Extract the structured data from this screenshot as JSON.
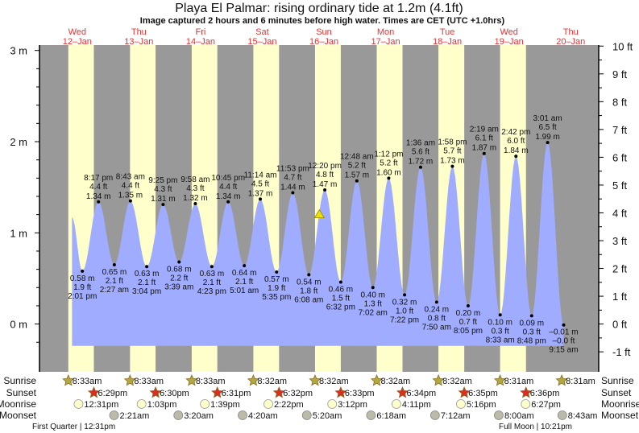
{
  "title": "Playa El Palmar: rising  ordinary tide at 1.2m (4.1ft)",
  "subtitle": "Image captured 2 hours and 6 minutes before high water. Times are CET (UTC +1.0hrs)",
  "colors": {
    "day": "#ffffcc",
    "night": "#999999",
    "tide": "#a0acff",
    "day_label": "#e83030",
    "sunrise_star": "#b0a840",
    "sunset_star": "#d83020",
    "moonrise": "#ffffcc",
    "moonset": "#bbbbaa"
  },
  "days": [
    {
      "weekday": "Wed",
      "date": "12–Jan"
    },
    {
      "weekday": "Thu",
      "date": "13–Jan"
    },
    {
      "weekday": "Fri",
      "date": "14–Jan"
    },
    {
      "weekday": "Sat",
      "date": "15–Jan"
    },
    {
      "weekday": "Sun",
      "date": "16–Jan"
    },
    {
      "weekday": "Mon",
      "date": "17–Jan"
    },
    {
      "weekday": "Tue",
      "date": "18–Jan"
    },
    {
      "weekday": "Wed",
      "date": "19–Jan"
    },
    {
      "weekday": "Thu",
      "date": "20–Jan"
    }
  ],
  "row_labels": {
    "sunrise": "Sunrise",
    "sunset": "Sunset",
    "moonrise": "Moonrise",
    "moonset": "Moonset"
  },
  "sunrise": [
    {
      "day": 0,
      "time": "8:33am"
    },
    {
      "day": 1,
      "time": "8:33am"
    },
    {
      "day": 2,
      "time": "8:33am"
    },
    {
      "day": 3,
      "time": "8:32am"
    },
    {
      "day": 4,
      "time": "8:32am"
    },
    {
      "day": 5,
      "time": "8:32am"
    },
    {
      "day": 6,
      "time": "8:32am"
    },
    {
      "day": 7,
      "time": "8:31am"
    },
    {
      "day": 8,
      "time": "8:31am"
    }
  ],
  "sunset": [
    {
      "day": 0,
      "time": "6:29pm"
    },
    {
      "day": 1,
      "time": "6:30pm"
    },
    {
      "day": 2,
      "time": "6:31pm"
    },
    {
      "day": 3,
      "time": "6:32pm"
    },
    {
      "day": 4,
      "time": "6:33pm"
    },
    {
      "day": 5,
      "time": "6:34pm"
    },
    {
      "day": 6,
      "time": "6:35pm"
    },
    {
      "day": 7,
      "time": "6:36pm"
    }
  ],
  "moonrise": [
    {
      "day": 0,
      "time": "12:31pm"
    },
    {
      "day": 1,
      "time": "1:03pm"
    },
    {
      "day": 2,
      "time": "1:39pm"
    },
    {
      "day": 3,
      "time": "2:22pm"
    },
    {
      "day": 4,
      "time": "3:12pm"
    },
    {
      "day": 5,
      "time": "4:11pm"
    },
    {
      "day": 6,
      "time": "5:16pm"
    },
    {
      "day": 7,
      "time": "6:27pm"
    }
  ],
  "moonset": [
    {
      "day": 1,
      "time": "2:21am"
    },
    {
      "day": 2,
      "time": "3:20am"
    },
    {
      "day": 3,
      "time": "4:20am"
    },
    {
      "day": 4,
      "time": "5:20am"
    },
    {
      "day": 5,
      "time": "6:18am"
    },
    {
      "day": 6,
      "time": "7:12am"
    },
    {
      "day": 7,
      "time": "8:00am"
    },
    {
      "day": 8,
      "time": "8:43am"
    }
  ],
  "moon_phases": [
    {
      "label": "First Quarter | 12:31pm",
      "day": 0,
      "align": "left"
    },
    {
      "label": "Full Moon | 10:21pm",
      "day": 7,
      "align": "left"
    }
  ],
  "chart_data": {
    "type": "area",
    "title": "Playa El Palmar: rising  ordinary tide at 1.2m (4.1ft)",
    "y_left": {
      "unit": "m",
      "range": [
        -0.3,
        3.05
      ],
      "ticks": [
        "0 m",
        "1 m",
        "2 m",
        "3 m"
      ],
      "tick_values": [
        0,
        1,
        2,
        3
      ]
    },
    "y_right": {
      "unit": "ft",
      "ticks": [
        "-1 ft",
        "0 ft",
        "1 ft",
        "2 ft",
        "3 ft",
        "4 ft",
        "5 ft",
        "6 ft",
        "7 ft",
        "8 ft",
        "9 ft",
        "10 ft"
      ],
      "tick_values": [
        -1,
        0,
        1,
        2,
        3,
        4,
        5,
        6,
        7,
        8,
        9,
        10
      ]
    },
    "x_range_hours": [
      -2.66,
      214
    ],
    "curve_start": {
      "hour": 10,
      "m": 1.17
    },
    "fill_floor_m": -0.24,
    "current_level": {
      "hour": 106.23,
      "m": 1.2
    },
    "extremes": [
      {
        "type": "low",
        "day": 0,
        "time": "2:01 pm",
        "m": 0.58,
        "m_label": "0.58 m",
        "ft_label": "1.9 ft"
      },
      {
        "type": "high",
        "day": 0,
        "time": "8:17 pm",
        "m": 1.34,
        "m_label": "1.34 m",
        "ft_label": "4.4 ft"
      },
      {
        "type": "low",
        "day": 1,
        "time": "2:27 am",
        "m": 0.65,
        "m_label": "0.65 m",
        "ft_label": "2.1 ft"
      },
      {
        "type": "high",
        "day": 1,
        "time": "8:43 am",
        "m": 1.35,
        "m_label": "1.35 m",
        "ft_label": "4.4 ft"
      },
      {
        "type": "low",
        "day": 1,
        "time": "3:04 pm",
        "m": 0.63,
        "m_label": "0.63 m",
        "ft_label": "2.1 ft"
      },
      {
        "type": "high",
        "day": 1,
        "time": "9:25 pm",
        "m": 1.31,
        "m_label": "1.31 m",
        "ft_label": "4.3 ft"
      },
      {
        "type": "low",
        "day": 2,
        "time": "3:39 am",
        "m": 0.68,
        "m_label": "0.68 m",
        "ft_label": "2.2 ft"
      },
      {
        "type": "high",
        "day": 2,
        "time": "9:58 am",
        "m": 1.32,
        "m_label": "1.32 m",
        "ft_label": "4.3 ft"
      },
      {
        "type": "low",
        "day": 2,
        "time": "4:23 pm",
        "m": 0.63,
        "m_label": "0.63 m",
        "ft_label": "2.1 ft"
      },
      {
        "type": "high",
        "day": 2,
        "time": "10:45 pm",
        "m": 1.34,
        "m_label": "1.34 m",
        "ft_label": "4.4 ft"
      },
      {
        "type": "low",
        "day": 3,
        "time": "5:01 am",
        "m": 0.64,
        "m_label": "0.64 m",
        "ft_label": "2.1 ft"
      },
      {
        "type": "high",
        "day": 3,
        "time": "11:14 am",
        "m": 1.37,
        "m_label": "1.37 m",
        "ft_label": "4.5 ft"
      },
      {
        "type": "low",
        "day": 3,
        "time": "5:35 pm",
        "m": 0.57,
        "m_label": "0.57 m",
        "ft_label": "1.9 ft"
      },
      {
        "type": "high",
        "day": 3,
        "time": "11:53 pm",
        "m": 1.44,
        "m_label": "1.44 m",
        "ft_label": "4.7 ft"
      },
      {
        "type": "low",
        "day": 4,
        "time": "6:08 am",
        "m": 0.54,
        "m_label": "0.54 m",
        "ft_label": "1.8 ft"
      },
      {
        "type": "high",
        "day": 4,
        "time": "12:20 pm",
        "m": 1.47,
        "m_label": "1.47 m",
        "ft_label": "4.8 ft"
      },
      {
        "type": "low",
        "day": 4,
        "time": "6:32 pm",
        "m": 0.46,
        "m_label": "0.46 m",
        "ft_label": "1.5 ft"
      },
      {
        "type": "high",
        "day": 5,
        "time": "12:48 am",
        "m": 1.57,
        "m_label": "1.57 m",
        "ft_label": "5.2 ft"
      },
      {
        "type": "low",
        "day": 5,
        "time": "7:02 am",
        "m": 0.4,
        "m_label": "0.40 m",
        "ft_label": "1.3 ft"
      },
      {
        "type": "high",
        "day": 5,
        "time": "1:12 pm",
        "m": 1.6,
        "m_label": "1.60 m",
        "ft_label": "5.2 ft"
      },
      {
        "type": "low",
        "day": 5,
        "time": "7:22 pm",
        "m": 0.32,
        "m_label": "0.32 m",
        "ft_label": "1.0 ft"
      },
      {
        "type": "high",
        "day": 6,
        "time": "1:36 am",
        "m": 1.72,
        "m_label": "1.72 m",
        "ft_label": "5.6 ft"
      },
      {
        "type": "low",
        "day": 6,
        "time": "7:50 am",
        "m": 0.24,
        "m_label": "0.24 m",
        "ft_label": "0.8 ft"
      },
      {
        "type": "high",
        "day": 6,
        "time": "1:58 pm",
        "m": 1.73,
        "m_label": "1.73 m",
        "ft_label": "5.7 ft"
      },
      {
        "type": "low",
        "day": 6,
        "time": "8:05 pm",
        "m": 0.2,
        "m_label": "0.20 m",
        "ft_label": "0.7 ft"
      },
      {
        "type": "high",
        "day": 7,
        "time": "2:19 am",
        "m": 1.87,
        "m_label": "1.87 m",
        "ft_label": "6.1 ft"
      },
      {
        "type": "low",
        "day": 7,
        "time": "8:33 am",
        "m": 0.1,
        "m_label": "0.10 m",
        "ft_label": "0.3 ft"
      },
      {
        "type": "high",
        "day": 7,
        "time": "2:42 pm",
        "m": 1.84,
        "m_label": "1.84 m",
        "ft_label": "6.0 ft"
      },
      {
        "type": "low",
        "day": 7,
        "time": "8:48 pm",
        "m": 0.09,
        "m_label": "0.09 m",
        "ft_label": "0.3 ft"
      },
      {
        "type": "high",
        "day": 8,
        "time": "3:01 am",
        "m": 1.99,
        "m_label": "1.99 m",
        "ft_label": "6.5 ft"
      },
      {
        "type": "low",
        "day": 8,
        "time": "9:15 am",
        "m": -0.01,
        "m_label": "–0.01 m",
        "ft_label": "–0.0 ft"
      }
    ]
  }
}
